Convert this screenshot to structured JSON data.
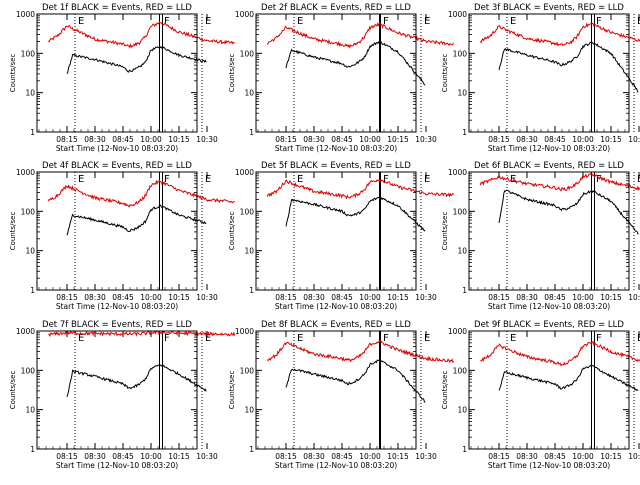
{
  "colors": {
    "events": "#000000",
    "lld": "#dd0000",
    "axes": "#000000",
    "background": "#ffffff"
  },
  "chart_data": [
    {
      "type": "line",
      "title": "Det 1f BLACK = Events, RED = LLD",
      "xlabel": "Start Time (12-Nov-10 08:03:20)",
      "ylabel": "Counts/sec",
      "xticks": [
        "08:15",
        "08:30",
        "08:45",
        "10:00",
        "10:15",
        "10:30"
      ],
      "yticks": [
        "1",
        "10",
        "100",
        "1000"
      ],
      "ylim": [
        1,
        1000
      ],
      "yscale": "log",
      "grid": false,
      "markers": [
        {
          "label": "E",
          "kind": "dotted"
        },
        {
          "label": "F",
          "kind": "solid-double"
        },
        {
          "label": "E",
          "kind": "dotted"
        }
      ],
      "series": [
        {
          "kind": "lld",
          "x": [
            "08:05",
            "08:10",
            "08:15",
            "08:20",
            "08:30",
            "08:45",
            "09:00",
            "09:15",
            "09:30",
            "09:45",
            "10:00",
            "10:05",
            "10:15",
            "10:30",
            "10:45"
          ],
          "values": [
            200,
            280,
            500,
            380,
            230,
            170,
            150,
            160,
            190,
            260,
            480,
            620,
            350,
            210,
            180
          ]
        },
        {
          "kind": "events",
          "x": [
            "08:15",
            "08:18",
            "08:30",
            "08:45",
            "09:00",
            "09:15",
            "09:30",
            "09:45",
            "10:00",
            "10:05",
            "10:15",
            "10:30"
          ],
          "values": [
            30,
            90,
            70,
            45,
            35,
            38,
            45,
            60,
            120,
            150,
            90,
            60
          ]
        }
      ]
    },
    {
      "type": "line",
      "title": "Det 2f BLACK = Events, RED = LLD",
      "xlabel": "Start Time (12-Nov-10 08:03:20)",
      "ylabel": "Counts/sec",
      "xticks": [
        "08:15",
        "08:30",
        "08:45",
        "10:00",
        "10:15",
        "10:30"
      ],
      "yticks": [
        "1",
        "10",
        "100",
        "1000"
      ],
      "ylim": [
        1,
        1000
      ],
      "yscale": "log",
      "grid": false,
      "markers": [
        {
          "label": "E",
          "kind": "dotted"
        },
        {
          "label": "F",
          "kind": "solid"
        },
        {
          "label": "E",
          "kind": "dotted"
        }
      ],
      "series": [
        {
          "kind": "lld",
          "x": [
            "08:05",
            "08:10",
            "08:15",
            "08:20",
            "08:30",
            "08:45",
            "09:00",
            "09:15",
            "09:30",
            "09:45",
            "10:00",
            "10:05",
            "10:15",
            "10:30",
            "10:45"
          ],
          "values": [
            180,
            250,
            450,
            360,
            230,
            170,
            150,
            160,
            190,
            260,
            450,
            550,
            330,
            200,
            170
          ]
        },
        {
          "kind": "events",
          "x": [
            "08:15",
            "08:18",
            "08:30",
            "08:45",
            "09:00",
            "09:15",
            "09:30",
            "09:45",
            "10:00",
            "10:05",
            "10:15",
            "10:30"
          ],
          "values": [
            45,
            120,
            80,
            55,
            45,
            50,
            60,
            80,
            150,
            200,
            110,
            15
          ]
        }
      ]
    },
    {
      "type": "line",
      "title": "Det 3f BLACK = Events, RED = LLD",
      "xlabel": "Start Time (12-Nov-10 08:03:20)",
      "ylabel": "Counts/sec",
      "xticks": [
        "08:15",
        "08:30",
        "08:45",
        "10:00",
        "10:15",
        "10:30"
      ],
      "yticks": [
        "1",
        "10",
        "100",
        "1000"
      ],
      "ylim": [
        1,
        1000
      ],
      "yscale": "log",
      "grid": false,
      "markers": [
        {
          "label": "E",
          "kind": "dotted"
        },
        {
          "label": "F",
          "kind": "solid-double"
        },
        {
          "label": "E",
          "kind": "dotted"
        }
      ],
      "series": [
        {
          "kind": "lld",
          "x": [
            "08:05",
            "08:10",
            "08:15",
            "08:20",
            "08:30",
            "08:45",
            "09:00",
            "09:15",
            "09:30",
            "09:45",
            "10:00",
            "10:05",
            "10:15",
            "10:30",
            "10:45"
          ],
          "values": [
            200,
            270,
            480,
            370,
            240,
            180,
            160,
            170,
            200,
            270,
            480,
            560,
            340,
            210,
            180
          ]
        },
        {
          "kind": "events",
          "x": [
            "08:15",
            "08:18",
            "08:30",
            "08:45",
            "09:00",
            "09:15",
            "09:30",
            "09:45",
            "10:00",
            "10:05",
            "10:15",
            "10:30"
          ],
          "values": [
            40,
            130,
            90,
            60,
            50,
            55,
            65,
            85,
            150,
            190,
            100,
            10
          ]
        }
      ]
    },
    {
      "type": "line",
      "title": "Det 4f BLACK = Events, RED = LLD",
      "xlabel": "Start Time (12-Nov-10 08:03:20)",
      "ylabel": "Counts/sec",
      "xticks": [
        "08:15",
        "08:30",
        "08:45",
        "10:00",
        "10:15",
        "10:30"
      ],
      "yticks": [
        "1",
        "10",
        "100",
        "1000"
      ],
      "ylim": [
        1,
        1000
      ],
      "yscale": "log",
      "grid": false,
      "markers": [
        {
          "label": "E",
          "kind": "dotted"
        },
        {
          "label": "F",
          "kind": "solid-double"
        },
        {
          "label": "E",
          "kind": "dotted"
        }
      ],
      "series": [
        {
          "kind": "lld",
          "x": [
            "08:05",
            "08:10",
            "08:15",
            "08:20",
            "08:30",
            "08:45",
            "09:00",
            "09:15",
            "09:30",
            "09:45",
            "10:00",
            "10:05",
            "10:15",
            "10:30",
            "10:45"
          ],
          "values": [
            180,
            260,
            450,
            350,
            220,
            160,
            140,
            150,
            180,
            250,
            470,
            580,
            340,
            200,
            170
          ]
        },
        {
          "kind": "events",
          "x": [
            "08:15",
            "08:18",
            "08:30",
            "08:45",
            "09:00",
            "09:15",
            "09:30",
            "09:45",
            "10:00",
            "10:05",
            "10:15",
            "10:30"
          ],
          "values": [
            25,
            80,
            60,
            40,
            32,
            35,
            42,
            55,
            110,
            140,
            80,
            50
          ]
        }
      ]
    },
    {
      "type": "line",
      "title": "Det 5f BLACK = Events, RED = LLD",
      "xlabel": "Start Time (12-Nov-10 08:03:20)",
      "ylabel": "Counts/sec",
      "xticks": [
        "08:15",
        "08:30",
        "08:45",
        "10:00",
        "10:15",
        "10:30"
      ],
      "yticks": [
        "1",
        "10",
        "100",
        "1000"
      ],
      "ylim": [
        1,
        1000
      ],
      "yscale": "log",
      "grid": false,
      "markers": [
        {
          "label": "E",
          "kind": "dotted"
        },
        {
          "label": "F",
          "kind": "solid"
        },
        {
          "label": "E",
          "kind": "dotted"
        }
      ],
      "series": [
        {
          "kind": "lld",
          "x": [
            "08:05",
            "08:10",
            "08:15",
            "08:20",
            "08:30",
            "08:45",
            "09:00",
            "09:15",
            "09:30",
            "09:45",
            "10:00",
            "10:05",
            "10:15",
            "10:30",
            "10:45"
          ],
          "values": [
            250,
            320,
            600,
            480,
            320,
            250,
            230,
            240,
            280,
            360,
            550,
            650,
            420,
            280,
            260
          ]
        },
        {
          "kind": "events",
          "x": [
            "08:15",
            "08:18",
            "08:30",
            "08:45",
            "09:00",
            "09:15",
            "09:30",
            "09:45",
            "10:00",
            "10:05",
            "10:15",
            "10:30"
          ],
          "values": [
            40,
            200,
            150,
            100,
            80,
            80,
            90,
            110,
            180,
            230,
            140,
            30
          ]
        }
      ]
    },
    {
      "type": "line",
      "title": "Det 6f BLACK = Events, RED = LLD",
      "xlabel": "Start Time (12-Nov-10 08:03:20)",
      "ylabel": "Counts/sec",
      "xticks": [
        "08:15",
        "08:30",
        "08:45",
        "10:00",
        "10:15",
        "10:30"
      ],
      "yticks": [
        "1",
        "10",
        "100",
        "1000"
      ],
      "ylim": [
        1,
        1000
      ],
      "yscale": "log",
      "grid": false,
      "markers": [
        {
          "label": "E",
          "kind": "dotted"
        },
        {
          "label": "F",
          "kind": "solid-double"
        },
        {
          "label": "E",
          "kind": "dotted"
        }
      ],
      "series": [
        {
          "kind": "lld",
          "x": [
            "08:05",
            "08:10",
            "08:15",
            "08:20",
            "08:30",
            "08:45",
            "09:00",
            "09:15",
            "09:30",
            "09:45",
            "10:00",
            "10:05",
            "10:15",
            "10:30",
            "10:45"
          ],
          "values": [
            500,
            600,
            750,
            650,
            500,
            400,
            360,
            370,
            420,
            520,
            750,
            850,
            550,
            380,
            340
          ]
        },
        {
          "kind": "events",
          "x": [
            "08:15",
            "08:18",
            "08:30",
            "08:45",
            "09:00",
            "09:15",
            "09:30",
            "09:45",
            "10:00",
            "10:05",
            "10:15",
            "10:30"
          ],
          "values": [
            50,
            350,
            200,
            140,
            110,
            115,
            130,
            160,
            270,
            330,
            180,
            25
          ]
        }
      ]
    },
    {
      "type": "line",
      "title": "Det 7f BLACK = Events, RED = LLD",
      "xlabel": "Start Time (12-Nov-10 08:03:20)",
      "ylabel": "Counts/sec",
      "xticks": [
        "08:15",
        "08:30",
        "08:45",
        "10:00",
        "10:15",
        "10:30"
      ],
      "yticks": [
        "1",
        "10",
        "100",
        "1000"
      ],
      "ylim": [
        1,
        1000
      ],
      "yscale": "log",
      "grid": false,
      "markers": [
        {
          "label": "E",
          "kind": "dotted"
        },
        {
          "label": "F",
          "kind": "solid-double"
        },
        {
          "label": "E",
          "kind": "dotted"
        }
      ],
      "series": [
        {
          "kind": "lld",
          "x": [
            "08:05",
            "08:10",
            "08:15",
            "08:20",
            "08:30",
            "08:45",
            "09:00",
            "09:15",
            "09:30",
            "09:45",
            "10:00",
            "10:05",
            "10:15",
            "10:30",
            "10:45"
          ],
          "values": [
            820,
            850,
            900,
            880,
            860,
            840,
            840,
            845,
            850,
            860,
            900,
            920,
            880,
            850,
            820
          ]
        },
        {
          "kind": "events",
          "x": [
            "08:15",
            "08:18",
            "08:30",
            "08:45",
            "09:00",
            "09:15",
            "09:30",
            "09:45",
            "10:00",
            "10:05",
            "10:15",
            "10:30"
          ],
          "values": [
            20,
            95,
            70,
            45,
            35,
            38,
            45,
            60,
            110,
            140,
            80,
            30
          ]
        }
      ]
    },
    {
      "type": "line",
      "title": "Det 8f BLACK = Events, RED = LLD",
      "xlabel": "Start Time (12-Nov-10 08:03:20)",
      "ylabel": "Counts/sec",
      "xticks": [
        "08:15",
        "08:30",
        "08:45",
        "10:00",
        "10:15",
        "10:30"
      ],
      "yticks": [
        "1",
        "10",
        "100",
        "1000"
      ],
      "ylim": [
        1,
        1000
      ],
      "yscale": "log",
      "grid": false,
      "markers": [
        {
          "label": "E",
          "kind": "dotted"
        },
        {
          "label": "F",
          "kind": "solid"
        },
        {
          "label": "E",
          "kind": "dotted"
        }
      ],
      "series": [
        {
          "kind": "lld",
          "x": [
            "08:05",
            "08:10",
            "08:15",
            "08:20",
            "08:30",
            "08:45",
            "09:00",
            "09:15",
            "09:30",
            "09:45",
            "10:00",
            "10:05",
            "10:15",
            "10:30",
            "10:45"
          ],
          "values": [
            180,
            250,
            500,
            400,
            260,
            200,
            180,
            190,
            220,
            290,
            460,
            540,
            330,
            200,
            170
          ]
        },
        {
          "kind": "events",
          "x": [
            "08:15",
            "08:18",
            "08:30",
            "08:45",
            "09:00",
            "09:15",
            "09:30",
            "09:45",
            "10:00",
            "10:05",
            "10:15",
            "10:30"
          ],
          "values": [
            35,
            110,
            80,
            55,
            45,
            50,
            60,
            80,
            140,
            180,
            100,
            15
          ]
        }
      ]
    },
    {
      "type": "line",
      "title": "Det 9f BLACK = Events, RED = LLD",
      "xlabel": "Start Time (12-Nov-10 08:03:20)",
      "ylabel": "Counts/sec",
      "xticks": [
        "08:15",
        "08:30",
        "08:45",
        "10:00",
        "10:15",
        "10:30"
      ],
      "yticks": [
        "1",
        "10",
        "100",
        "1000"
      ],
      "ylim": [
        1,
        1000
      ],
      "yscale": "log",
      "grid": false,
      "markers": [
        {
          "label": "E",
          "kind": "dotted"
        },
        {
          "label": "F",
          "kind": "solid-double"
        },
        {
          "label": "E",
          "kind": "dotted"
        }
      ],
      "series": [
        {
          "kind": "lld",
          "x": [
            "08:05",
            "08:10",
            "08:15",
            "08:20",
            "08:30",
            "08:45",
            "09:00",
            "09:15",
            "09:30",
            "09:45",
            "10:00",
            "10:05",
            "10:15",
            "10:30",
            "10:45"
          ],
          "values": [
            170,
            240,
            430,
            340,
            220,
            160,
            140,
            150,
            180,
            240,
            420,
            500,
            300,
            180,
            150
          ]
        },
        {
          "kind": "events",
          "x": [
            "08:15",
            "08:18",
            "08:30",
            "08:45",
            "09:00",
            "09:15",
            "09:30",
            "09:45",
            "10:00",
            "10:05",
            "10:15",
            "10:30"
          ],
          "values": [
            30,
            90,
            65,
            45,
            35,
            38,
            45,
            60,
            110,
            130,
            70,
            30
          ]
        }
      ]
    }
  ]
}
